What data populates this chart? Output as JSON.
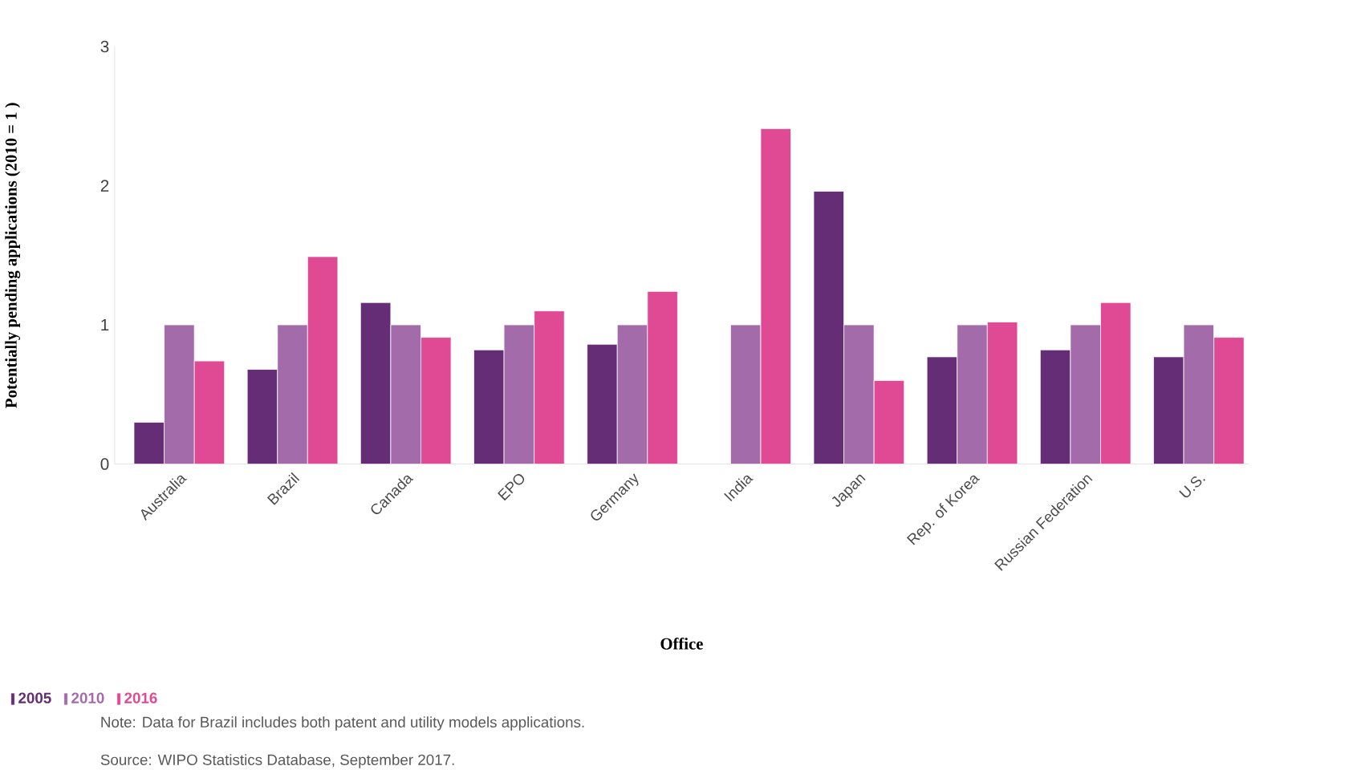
{
  "chart_data": {
    "type": "bar",
    "xlabel": "Office",
    "ylabel": "Potentially pending applications (2010 = 1 )",
    "categories": [
      "Australia",
      "Brazil",
      "Canada",
      "EPO",
      "Germany",
      "India",
      "Japan",
      "Rep. of Korea",
      "Russian Federation",
      "U.S."
    ],
    "series": [
      {
        "name": "2005",
        "color": "#662d77",
        "values": [
          0.3,
          0.68,
          1.16,
          0.82,
          0.86,
          null,
          1.96,
          0.77,
          0.82,
          0.77
        ]
      },
      {
        "name": "2010",
        "color": "#a36ba9",
        "values": [
          1.0,
          1.0,
          1.0,
          1.0,
          1.0,
          1.0,
          1.0,
          1.0,
          1.0,
          1.0
        ]
      },
      {
        "name": "2016",
        "color": "#e04a95",
        "values": [
          0.74,
          1.49,
          0.91,
          1.1,
          1.24,
          2.41,
          0.6,
          1.02,
          1.16,
          0.91
        ]
      }
    ],
    "ylim": [
      0,
      3
    ],
    "yticks": [
      0,
      1,
      2,
      3
    ],
    "grid": false,
    "legend": "bottom left",
    "annotations": [
      "Note: Data for Brazil includes both patent and utility models applications.",
      "Source: WIPO Statistics Database, September 2017."
    ]
  }
}
